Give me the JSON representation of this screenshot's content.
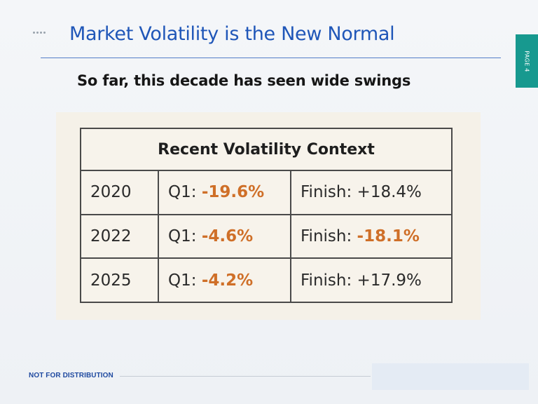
{
  "slide": {
    "title": "Market Volatility is the New Normal",
    "subtitle": "So far, this decade has seen wide swings",
    "page_label": "PAGE 4",
    "footer": "NOT FOR DISTRIBUTION",
    "colors": {
      "title": "#1f56b8",
      "page_tab": "#17998f",
      "negative_value": "#cf6f28"
    }
  },
  "table": {
    "title": "Recent Volatility Context",
    "q1_prefix": "Q1:",
    "finish_prefix": "Finish:",
    "rows": [
      {
        "year": "2020",
        "q1": "-19.6%",
        "finish": "+18.4%",
        "q1_negative": true,
        "finish_negative": false
      },
      {
        "year": "2022",
        "q1": "-4.6%",
        "finish": "-18.1%",
        "q1_negative": true,
        "finish_negative": true
      },
      {
        "year": "2025",
        "q1": "-4.2%",
        "finish": "+17.9%",
        "q1_negative": true,
        "finish_negative": false
      }
    ]
  }
}
